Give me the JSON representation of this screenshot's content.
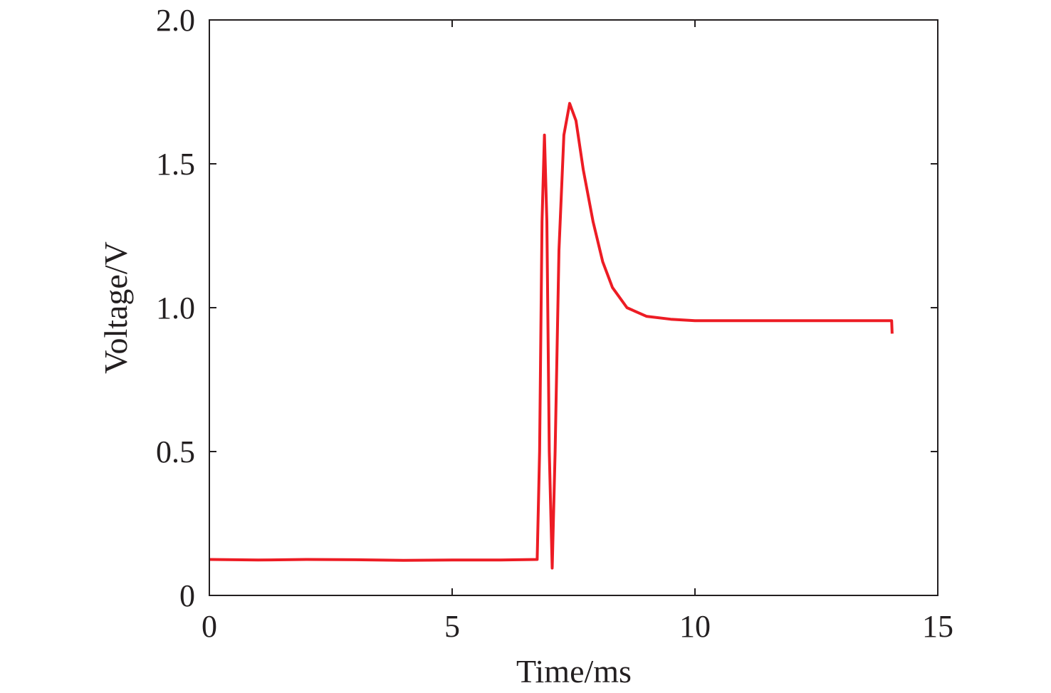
{
  "chart_data": {
    "type": "line",
    "title": "",
    "xlabel": "Time/ms",
    "ylabel": "Voltage/V",
    "xlim": [
      0,
      15
    ],
    "ylim": [
      0,
      2.0
    ],
    "xticks": [
      0,
      5,
      10,
      15
    ],
    "xtick_labels": [
      "0",
      "5",
      "10",
      "15"
    ],
    "yticks": [
      0,
      0.5,
      1.0,
      1.5,
      2.0
    ],
    "ytick_labels": [
      "0",
      "0.5",
      "1.0",
      "1.5",
      "2.0"
    ],
    "grid": false,
    "legend": "none",
    "series": [
      {
        "color": "#ed1c24",
        "x": [
          0,
          1,
          2,
          3,
          4,
          5,
          6,
          6.75,
          6.8,
          6.85,
          6.9,
          6.95,
          7.0,
          7.06,
          7.12,
          7.2,
          7.3,
          7.42,
          7.55,
          7.7,
          7.9,
          8.1,
          8.3,
          8.6,
          9.0,
          9.5,
          10,
          11,
          12,
          13,
          14.05,
          14.06
        ],
        "y": [
          0.125,
          0.123,
          0.125,
          0.124,
          0.122,
          0.123,
          0.123,
          0.125,
          0.5,
          1.3,
          1.6,
          1.3,
          0.5,
          0.095,
          0.5,
          1.2,
          1.6,
          1.71,
          1.65,
          1.48,
          1.3,
          1.16,
          1.07,
          1.0,
          0.97,
          0.96,
          0.955,
          0.955,
          0.955,
          0.955,
          0.955,
          0.91
        ]
      }
    ]
  }
}
